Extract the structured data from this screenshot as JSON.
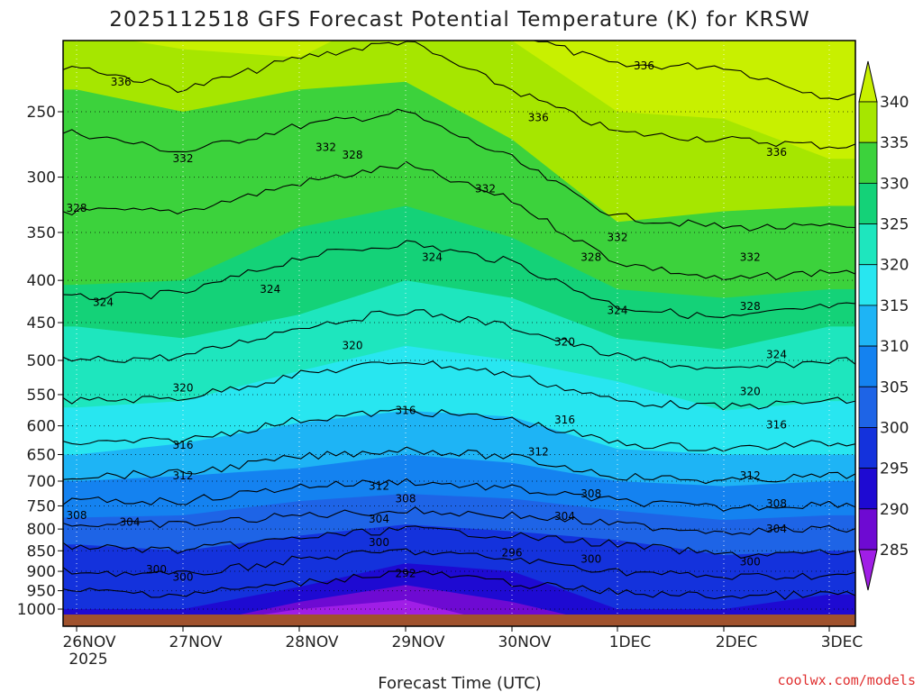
{
  "chart_data": {
    "type": "heatmap",
    "title": "2025112518 GFS Forecast Potential Temperature (K) for KRSW",
    "xlabel": "Forecast Time (UTC)",
    "ylabel": "",
    "x_ticks": [
      "26NOV",
      "27NOV",
      "28NOV",
      "29NOV",
      "30NOV",
      "1DEC",
      "2DEC",
      "3DEC"
    ],
    "x_year_label": "2025",
    "y_ticks": [
      250,
      300,
      350,
      400,
      450,
      500,
      550,
      600,
      650,
      700,
      750,
      800,
      850,
      900,
      950,
      1000
    ],
    "y_axis": "pressure (hPa), log scale, inverted",
    "colorbar_ticks": [
      340,
      335,
      330,
      325,
      320,
      315,
      310,
      305,
      300,
      295,
      290,
      285
    ],
    "colorbar_colors": {
      "above_340": "#c8f000",
      "335-340": "#a6e600",
      "330-335": "#3cd23c",
      "325-330": "#14d278",
      "320-325": "#1ee6be",
      "315-320": "#28e6f0",
      "310-315": "#1eb4f5",
      "305-310": "#1482f0",
      "300-305": "#1e64e6",
      "295-300": "#1432dc",
      "290-295": "#1e0ad2",
      "285-290": "#6e0ad2",
      "below_285": "#a01ee6"
    },
    "contour_labels": [
      {
        "value": "336",
        "x": "26NOV10",
        "p": 230
      },
      {
        "value": "336",
        "x": "1DEC06",
        "p": 220
      },
      {
        "value": "336",
        "x": "30NOV06",
        "p": 254
      },
      {
        "value": "336",
        "x": "2DEC12",
        "p": 280
      },
      {
        "value": "332",
        "x": "27NOV",
        "p": 285
      },
      {
        "value": "332",
        "x": "28NOV06",
        "p": 276
      },
      {
        "value": "328",
        "x": "28NOV12",
        "p": 282
      },
      {
        "value": "332",
        "x": "29NOV18",
        "p": 310
      },
      {
        "value": "332",
        "x": "1DEC",
        "p": 355
      },
      {
        "value": "332",
        "x": "2DEC06",
        "p": 375
      },
      {
        "value": "328",
        "x": "26NOV",
        "p": 327
      },
      {
        "value": "324",
        "x": "29NOV06",
        "p": 375
      },
      {
        "value": "328",
        "x": "30NOV18",
        "p": 375
      },
      {
        "value": "324",
        "x": "26NOV06",
        "p": 425
      },
      {
        "value": "324",
        "x": "27NOV18",
        "p": 410
      },
      {
        "value": "324",
        "x": "30NOV24",
        "p": 435
      },
      {
        "value": "328",
        "x": "2DEC06",
        "p": 430
      },
      {
        "value": "320",
        "x": "28NOV12",
        "p": 480
      },
      {
        "value": "320",
        "x": "30NOV12",
        "p": 475
      },
      {
        "value": "324",
        "x": "2DEC12",
        "p": 492
      },
      {
        "value": "320",
        "x": "27NOV",
        "p": 540
      },
      {
        "value": "316",
        "x": "28NOV24",
        "p": 575
      },
      {
        "value": "316",
        "x": "30NOV12",
        "p": 590
      },
      {
        "value": "320",
        "x": "2DEC06",
        "p": 545
      },
      {
        "value": "316",
        "x": "2DEC12",
        "p": 598
      },
      {
        "value": "316",
        "x": "27NOV",
        "p": 633
      },
      {
        "value": "312",
        "x": "30NOV06",
        "p": 645
      },
      {
        "value": "312",
        "x": "27NOV",
        "p": 690
      },
      {
        "value": "312",
        "x": "28NOV18",
        "p": 710
      },
      {
        "value": "312",
        "x": "2DEC06",
        "p": 690
      },
      {
        "value": "308",
        "x": "28NOV24",
        "p": 735
      },
      {
        "value": "308",
        "x": "30NOV18",
        "p": 725
      },
      {
        "value": "308",
        "x": "2DEC12",
        "p": 745
      },
      {
        "value": "308",
        "x": "26NOV",
        "p": 770
      },
      {
        "value": "304",
        "x": "26NOV12",
        "p": 785
      },
      {
        "value": "304",
        "x": "28NOV18",
        "p": 778
      },
      {
        "value": "304",
        "x": "30NOV12",
        "p": 772
      },
      {
        "value": "304",
        "x": "2DEC12",
        "p": 800
      },
      {
        "value": "300",
        "x": "28NOV18",
        "p": 830
      },
      {
        "value": "296",
        "x": "29NOV24",
        "p": 855
      },
      {
        "value": "300",
        "x": "30NOV18",
        "p": 870
      },
      {
        "value": "300",
        "x": "2DEC06",
        "p": 876
      },
      {
        "value": "300",
        "x": "26NOV18",
        "p": 895
      },
      {
        "value": "300",
        "x": "27NOV",
        "p": 915
      },
      {
        "value": "292",
        "x": "29NOV",
        "p": 905
      }
    ]
  },
  "credit": "coolwx.com/models"
}
